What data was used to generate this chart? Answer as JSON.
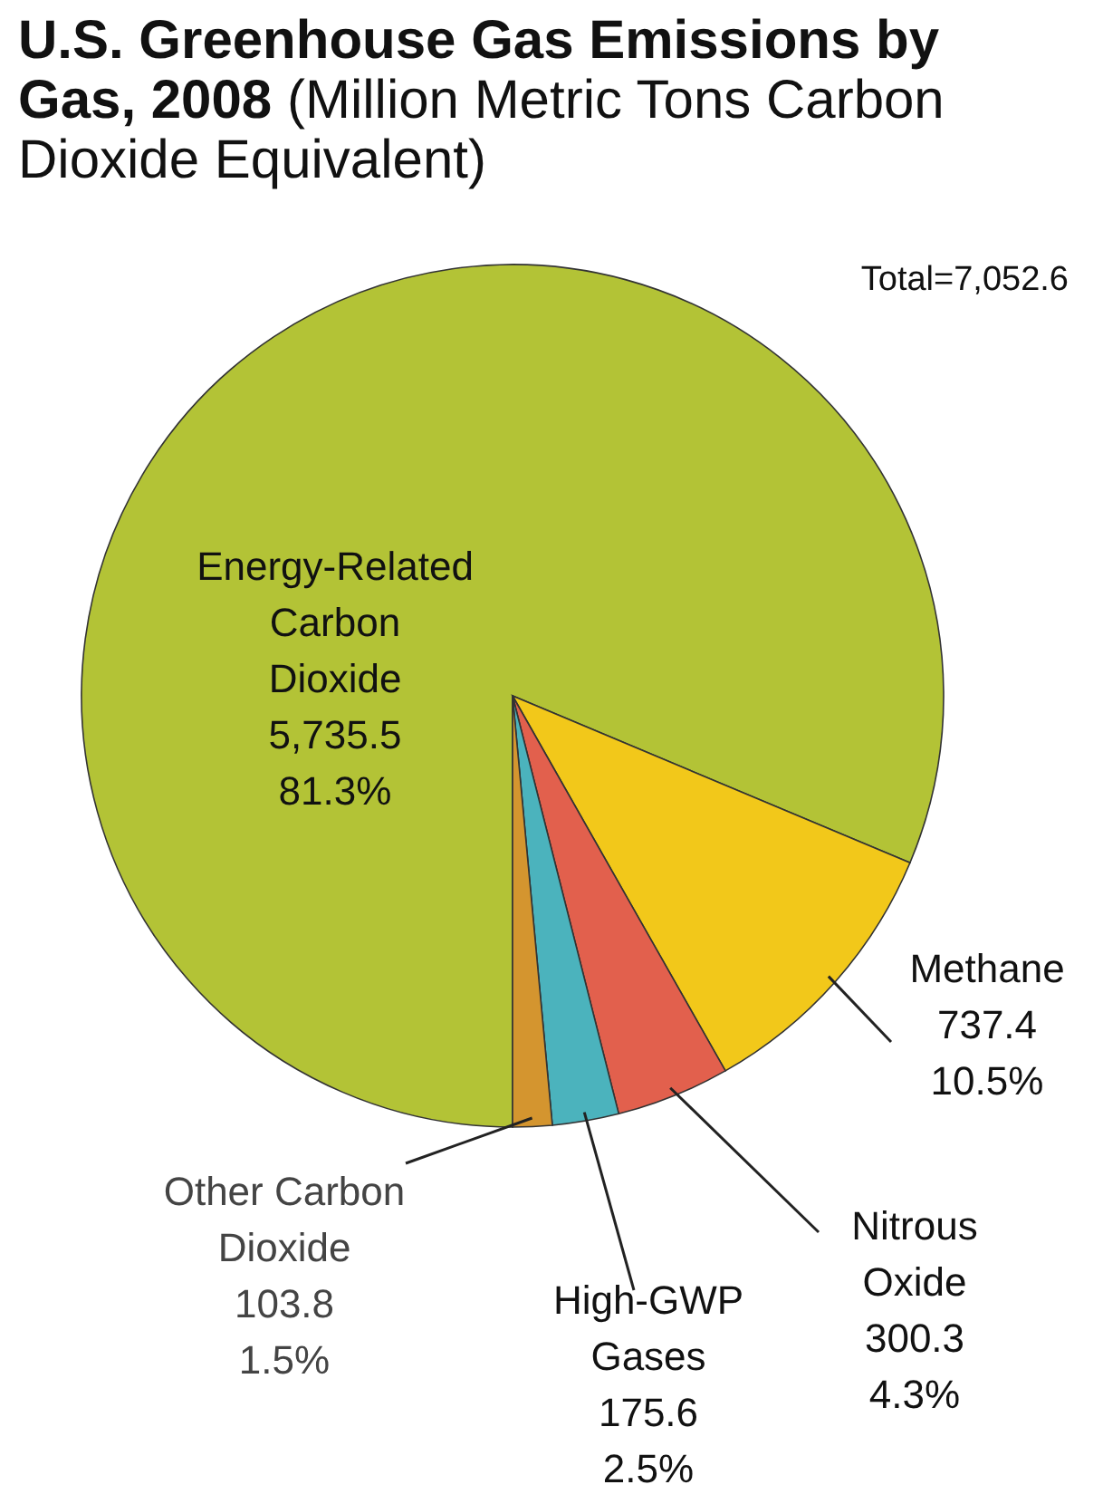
{
  "chart_data": {
    "type": "pie",
    "title": "U.S. Greenhouse Gas Emissions by Gas, 2008",
    "subtitle": "(Million Metric Tons Carbon Dioxide Equivalent)",
    "categories": [
      "Energy-Related Carbon Dioxide",
      "Methane",
      "Nitrous Oxide",
      "High-GWP Gases",
      "Other Carbon Dioxide"
    ],
    "values": [
      5735.5,
      737.4,
      300.3,
      175.6,
      103.8
    ],
    "colors": [
      "#b3c336",
      "#f2c81a",
      "#e2604d",
      "#4bb3bd",
      "#d4952f"
    ],
    "value_labels": [
      "5,735.5\n81.3%",
      "737.4\n10.5%",
      "300.3\n4.3%",
      "175.6\n2.5%",
      "103.8\n1.5%"
    ],
    "annotations": [
      "Total=7,052.6"
    ]
  }
}
